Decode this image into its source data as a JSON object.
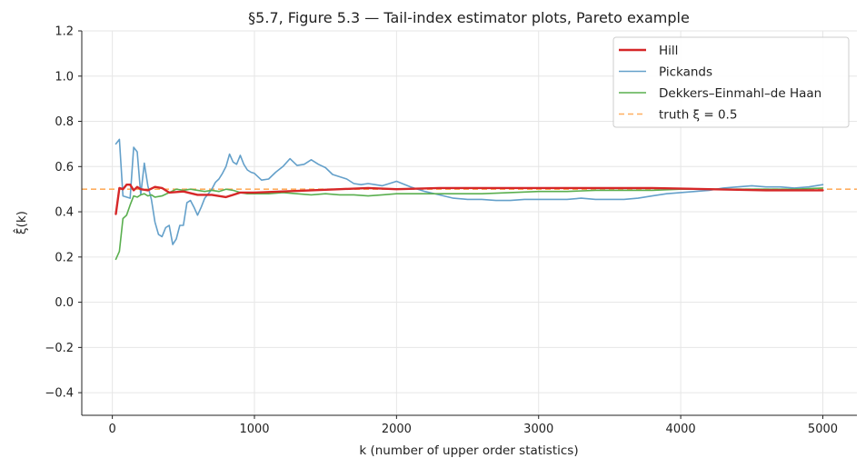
{
  "chart_data": {
    "type": "line",
    "title": "§5.7, Figure 5.3 — Tail-index estimator plots, Pareto example",
    "xlabel": "k (number of upper order statistics)",
    "ylabel": "ξ̂(k)",
    "xlim": [
      -215,
      5240
    ],
    "ylim": [
      -0.5,
      1.2
    ],
    "x_ticks": [
      0,
      1000,
      2000,
      3000,
      4000,
      5000
    ],
    "x_tick_labels": [
      "0",
      "1000",
      "2000",
      "3000",
      "4000",
      "5000"
    ],
    "y_ticks": [
      -0.4,
      -0.2,
      0.0,
      0.2,
      0.4,
      0.6,
      0.8,
      1.0,
      1.2
    ],
    "y_tick_labels": [
      "−0.4",
      "−0.2",
      "0.0",
      "0.2",
      "0.4",
      "0.6",
      "0.8",
      "1.0",
      "1.2"
    ],
    "grid": true,
    "legend_position": "top-right",
    "reference_line": {
      "name": "truth ξ = 0.5",
      "y": 0.5,
      "color": "#ffae5f",
      "style": "dashed"
    },
    "series": [
      {
        "name": "Hill",
        "color": "#d62728",
        "x": [
          25,
          50,
          75,
          100,
          125,
          150,
          175,
          200,
          250,
          300,
          350,
          400,
          500,
          600,
          700,
          800,
          900,
          1000,
          1200,
          1400,
          1600,
          1800,
          2000,
          2300,
          2600,
          3000,
          3400,
          3800,
          4200,
          4600,
          5000
        ],
        "y": [
          0.39,
          0.505,
          0.5,
          0.52,
          0.52,
          0.495,
          0.51,
          0.5,
          0.495,
          0.51,
          0.505,
          0.485,
          0.49,
          0.475,
          0.475,
          0.465,
          0.485,
          0.485,
          0.49,
          0.495,
          0.5,
          0.505,
          0.5,
          0.505,
          0.505,
          0.505,
          0.505,
          0.505,
          0.5,
          0.495,
          0.495
        ]
      },
      {
        "name": "Pickands",
        "color": "#64a0ca",
        "x": [
          25,
          50,
          75,
          100,
          125,
          150,
          175,
          200,
          225,
          250,
          275,
          300,
          325,
          350,
          375,
          400,
          425,
          450,
          475,
          500,
          525,
          550,
          575,
          600,
          625,
          650,
          675,
          700,
          725,
          750,
          775,
          800,
          825,
          850,
          875,
          900,
          925,
          950,
          975,
          1000,
          1050,
          1100,
          1150,
          1200,
          1250,
          1300,
          1350,
          1400,
          1450,
          1500,
          1550,
          1600,
          1650,
          1700,
          1750,
          1800,
          1850,
          1900,
          1950,
          2000,
          2100,
          2200,
          2300,
          2400,
          2500,
          2600,
          2700,
          2800,
          2900,
          3000,
          3100,
          3200,
          3300,
          3400,
          3500,
          3600,
          3700,
          3800,
          3900,
          4000,
          4100,
          4200,
          4300,
          4400,
          4500,
          4600,
          4700,
          4800,
          4900,
          5000
        ],
        "y": [
          0.7,
          0.72,
          0.47,
          0.465,
          0.46,
          0.685,
          0.665,
          0.475,
          0.615,
          0.515,
          0.455,
          0.355,
          0.3,
          0.29,
          0.33,
          0.34,
          0.255,
          0.28,
          0.34,
          0.34,
          0.44,
          0.45,
          0.42,
          0.385,
          0.42,
          0.46,
          0.48,
          0.5,
          0.53,
          0.545,
          0.57,
          0.6,
          0.655,
          0.62,
          0.61,
          0.65,
          0.61,
          0.585,
          0.575,
          0.57,
          0.54,
          0.545,
          0.575,
          0.6,
          0.635,
          0.605,
          0.61,
          0.63,
          0.61,
          0.595,
          0.565,
          0.555,
          0.545,
          0.525,
          0.52,
          0.525,
          0.52,
          0.515,
          0.525,
          0.535,
          0.51,
          0.49,
          0.475,
          0.46,
          0.455,
          0.455,
          0.45,
          0.45,
          0.455,
          0.455,
          0.455,
          0.455,
          0.46,
          0.455,
          0.455,
          0.455,
          0.46,
          0.47,
          0.48,
          0.485,
          0.49,
          0.495,
          0.505,
          0.51,
          0.515,
          0.51,
          0.51,
          0.505,
          0.51,
          0.52
        ]
      },
      {
        "name": "Dekkers–Einmahl–de Haan",
        "color": "#5aaf4f",
        "x": [
          25,
          50,
          75,
          100,
          125,
          150,
          175,
          200,
          225,
          250,
          275,
          300,
          350,
          400,
          450,
          500,
          550,
          600,
          650,
          700,
          750,
          800,
          850,
          900,
          950,
          1000,
          1100,
          1200,
          1300,
          1400,
          1500,
          1600,
          1700,
          1800,
          1900,
          2000,
          2200,
          2400,
          2600,
          2800,
          3000,
          3200,
          3400,
          3600,
          3800,
          4000,
          4200,
          4400,
          4600,
          4800,
          5000
        ],
        "y": [
          0.19,
          0.225,
          0.37,
          0.385,
          0.43,
          0.47,
          0.465,
          0.475,
          0.48,
          0.47,
          0.475,
          0.465,
          0.47,
          0.485,
          0.5,
          0.495,
          0.5,
          0.495,
          0.49,
          0.495,
          0.49,
          0.5,
          0.495,
          0.485,
          0.48,
          0.48,
          0.48,
          0.485,
          0.48,
          0.475,
          0.48,
          0.475,
          0.475,
          0.47,
          0.475,
          0.48,
          0.48,
          0.48,
          0.48,
          0.485,
          0.49,
          0.49,
          0.495,
          0.495,
          0.495,
          0.5,
          0.5,
          0.5,
          0.5,
          0.5,
          0.505
        ]
      }
    ]
  }
}
